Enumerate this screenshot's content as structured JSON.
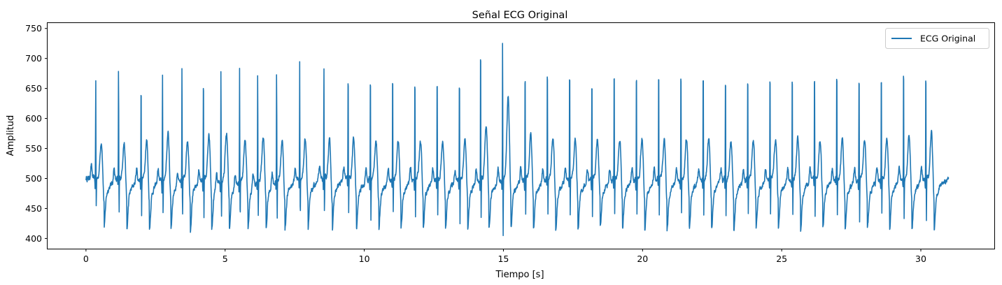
{
  "chart_data": {
    "type": "line",
    "title": "Señal ECG Original",
    "xlabel": "Tiempo [s]",
    "ylabel": "Amplitud",
    "xlim": [
      -1.38,
      32.64
    ],
    "ylim": [
      383,
      759
    ],
    "x_ticks": [
      0,
      5,
      10,
      15,
      20,
      25,
      30
    ],
    "y_ticks": [
      400,
      450,
      500,
      550,
      600,
      650,
      700,
      750
    ],
    "grid": false,
    "legend_position": "top-right",
    "series": [
      {
        "name": "ECG Original",
        "color": "#1f77b4",
        "duration_s": 31.0,
        "baseline": 500,
        "beats": [
          {
            "t": 0.35,
            "r": 671,
            "s": 450,
            "t_wave": 562
          },
          {
            "t": 1.17,
            "r": 686,
            "s": 438,
            "t_wave": 560
          },
          {
            "t": 1.98,
            "r": 678,
            "s": 438,
            "t_wave": 565
          },
          {
            "t": 2.75,
            "r": 680,
            "s": 436,
            "t_wave": 575
          },
          {
            "t": 3.45,
            "r": 696,
            "s": 440,
            "t_wave": 565
          },
          {
            "t": 4.22,
            "r": 692,
            "s": 432,
            "t_wave": 570
          },
          {
            "t": 4.85,
            "r": 696,
            "s": 440,
            "t_wave": 575
          },
          {
            "t": 5.52,
            "r": 692,
            "s": 438,
            "t_wave": 565
          },
          {
            "t": 6.17,
            "r": 684,
            "s": 440,
            "t_wave": 570
          },
          {
            "t": 6.85,
            "r": 687,
            "s": 437,
            "t_wave": 562
          },
          {
            "t": 7.68,
            "r": 695,
            "s": 440,
            "t_wave": 568
          },
          {
            "t": 8.55,
            "r": 694,
            "s": 437,
            "t_wave": 565
          },
          {
            "t": 9.42,
            "r": 695,
            "s": 440,
            "t_wave": 566
          },
          {
            "t": 10.22,
            "r": 695,
            "s": 430,
            "t_wave": 565
          },
          {
            "t": 11.02,
            "r": 695,
            "s": 440,
            "t_wave": 565
          },
          {
            "t": 11.82,
            "r": 695,
            "s": 435,
            "t_wave": 563
          },
          {
            "t": 12.62,
            "r": 692,
            "s": 440,
            "t_wave": 560
          },
          {
            "t": 13.42,
            "r": 689,
            "s": 426,
            "t_wave": 565
          },
          {
            "t": 14.18,
            "r": 742,
            "s": 430,
            "t_wave": 585
          },
          {
            "t": 14.97,
            "r": 738,
            "s": 397,
            "t_wave": 638
          },
          {
            "t": 15.78,
            "r": 705,
            "s": 438,
            "t_wave": 575
          },
          {
            "t": 16.58,
            "r": 704,
            "s": 440,
            "t_wave": 570
          },
          {
            "t": 17.38,
            "r": 704,
            "s": 437,
            "t_wave": 565
          },
          {
            "t": 18.18,
            "r": 691,
            "s": 440,
            "t_wave": 565
          },
          {
            "t": 18.98,
            "r": 703,
            "s": 438,
            "t_wave": 565
          },
          {
            "t": 19.78,
            "r": 703,
            "s": 440,
            "t_wave": 565
          },
          {
            "t": 20.58,
            "r": 703,
            "s": 437,
            "t_wave": 565
          },
          {
            "t": 21.38,
            "r": 703,
            "s": 440,
            "t_wave": 565
          },
          {
            "t": 22.18,
            "r": 703,
            "s": 438,
            "t_wave": 565
          },
          {
            "t": 22.98,
            "r": 696,
            "s": 440,
            "t_wave": 563
          },
          {
            "t": 23.78,
            "r": 694,
            "s": 438,
            "t_wave": 565
          },
          {
            "t": 24.58,
            "r": 701,
            "s": 437,
            "t_wave": 565
          },
          {
            "t": 25.38,
            "r": 700,
            "s": 440,
            "t_wave": 568
          },
          {
            "t": 26.18,
            "r": 701,
            "s": 438,
            "t_wave": 565
          },
          {
            "t": 26.98,
            "r": 705,
            "s": 437,
            "t_wave": 565
          },
          {
            "t": 27.78,
            "r": 701,
            "s": 427,
            "t_wave": 565
          },
          {
            "t": 28.58,
            "r": 702,
            "s": 440,
            "t_wave": 565
          },
          {
            "t": 29.38,
            "r": 708,
            "s": 435,
            "t_wave": 570
          },
          {
            "t": 30.18,
            "r": 702,
            "s": 426,
            "t_wave": 578
          }
        ]
      }
    ]
  }
}
